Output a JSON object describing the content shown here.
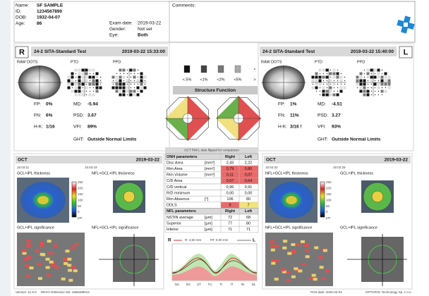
{
  "header": {
    "patient": [
      [
        "Name:",
        "SF SAMPLE"
      ],
      [
        "ID:",
        "1234567890"
      ],
      [
        "DOB:",
        "1932-04-07"
      ],
      [
        "Age:",
        "86"
      ]
    ],
    "exam": [
      [
        "Exam date:",
        "2019-03-22"
      ],
      [
        "Gender:",
        "Not set"
      ],
      [
        "Eye:",
        "Both"
      ]
    ],
    "comments": "Comments:"
  },
  "vf_right": {
    "eye": "R",
    "test": "24-2 SITA-Standard Test",
    "datetime": "2019-03-22 15:33:00",
    "plots": [
      "RAW DOTS",
      "PTD",
      "PPD"
    ],
    "stats_a": [
      [
        "FP:",
        "0%"
      ],
      [
        "FN:",
        "6%"
      ],
      [
        "H-K:",
        "1/16"
      ]
    ],
    "stats_b": [
      [
        "MD:",
        "-5.94"
      ],
      [
        "PSD:",
        "3.67"
      ],
      [
        "VFI:",
        "89%"
      ]
    ],
    "ght": [
      "GHT:",
      "Outside Normal Limits"
    ]
  },
  "vf_left": {
    "eye": "L",
    "test": "24-2 SITA-Standard Test",
    "datetime": "2019-03-22 15:40:00",
    "plots": [
      "RAW DOTS",
      "PTD",
      "PPD"
    ],
    "stats_a": [
      [
        "FP:",
        "1%"
      ],
      [
        "FN:",
        "11%"
      ],
      [
        "H-K:",
        "3/16 !"
      ]
    ],
    "stats_b": [
      [
        "MD:",
        "-4.51"
      ],
      [
        "PSD:",
        "3.27"
      ],
      [
        "VFI:",
        "93%"
      ]
    ],
    "ght": [
      "GHT:",
      "Outside Normal Limits"
    ]
  },
  "legend": [
    "<.5%",
    "<1%",
    "<2%",
    "<5%",
    ">"
  ],
  "structure_function": "Structure Function",
  "oct_right": {
    "title": "OCT",
    "date": "2019-03-22",
    "times": [
      "15:03:11",
      "15:03:43"
    ],
    "maps": [
      "GCL+IPL thickness",
      "NFL+GCL+IPL thickness",
      "GCL+IPL significance",
      "NFL+GCL+IPL significance"
    ],
    "scale": [
      "250",
      "200",
      "150",
      "100",
      "50",
      "0",
      "µm"
    ]
  },
  "oct_left": {
    "title": "OCT",
    "date": "2019-03-22",
    "times": [
      "15:04:32",
      "15:02:25"
    ],
    "maps": [
      "NFL+GCL+IPL thickness",
      "GCL+IPL thickness",
      "NFL+GCL+IPL significance",
      "GCL+IPL significance"
    ],
    "scale": [
      "250",
      "200",
      "150",
      "100",
      "50",
      "0",
      "µm"
    ]
  },
  "table": {
    "title": "OCT RNFL data flipped for comparison",
    "sections": [
      {
        "header": [
          "ONH parameters",
          "Right",
          "Left"
        ],
        "rows": [
          {
            "cells": [
              "Disc Area",
              "[mm²]",
              "2,43",
              "2,22"
            ]
          },
          {
            "cells": [
              "Rim Area",
              "[mm²]",
              "0,79",
              "0,80"
            ],
            "colors": [
              "#e86a6a",
              "#e86a6a"
            ]
          },
          {
            "cells": [
              "Rim Volume",
              "[mm³]",
              "0,11",
              "0,07"
            ],
            "colors": [
              "#e86a6a",
              "#e86a6a"
            ]
          },
          {
            "cells": [
              "C/D Area",
              "",
              "0,67",
              "0,64"
            ],
            "colors": [
              "#e86a6a",
              "#e86a6a"
            ]
          },
          {
            "cells": [
              "C/D vertical",
              "",
              "0,96",
              "0,91"
            ]
          },
          {
            "cells": [
              "R/D minimum",
              "",
              "0,00",
              "0,00"
            ]
          },
          {
            "cells": [
              "Rim Absence",
              "[°]",
              "106",
              "80"
            ]
          },
          {
            "cells": [
              "DDLS",
              "",
              "8",
              "7"
            ],
            "colors": [
              "#e86a6a",
              "#f2e27a"
            ]
          }
        ]
      },
      {
        "header": [
          "NFL parameters",
          "Right",
          "Left"
        ],
        "rows": [
          {
            "cells": [
              "NSTIN average",
              "[µm]",
              "72",
              "68"
            ]
          },
          {
            "cells": [
              "Superior",
              "[µm]",
              "77",
              "80"
            ]
          },
          {
            "cells": [
              "Inferior",
              "[µm]",
              "71",
              "71"
            ]
          }
        ]
      }
    ]
  },
  "profile": {
    "right": "R",
    "left": "L",
    "radius": "R: 4,50 mm",
    "rotation": "RT: 0,00 mm",
    "sectors": [
      "NU",
      "SN",
      "ST",
      "TU",
      "TI",
      "IT",
      "IN",
      "NL"
    ]
  },
  "footer": [
    "Version: 11.5.0",
    "REVO NX",
    "Device SN: 1568489013",
    "Print date: 2025-02-04",
    "OPTOPOL Technology Sp. z o.o."
  ]
}
